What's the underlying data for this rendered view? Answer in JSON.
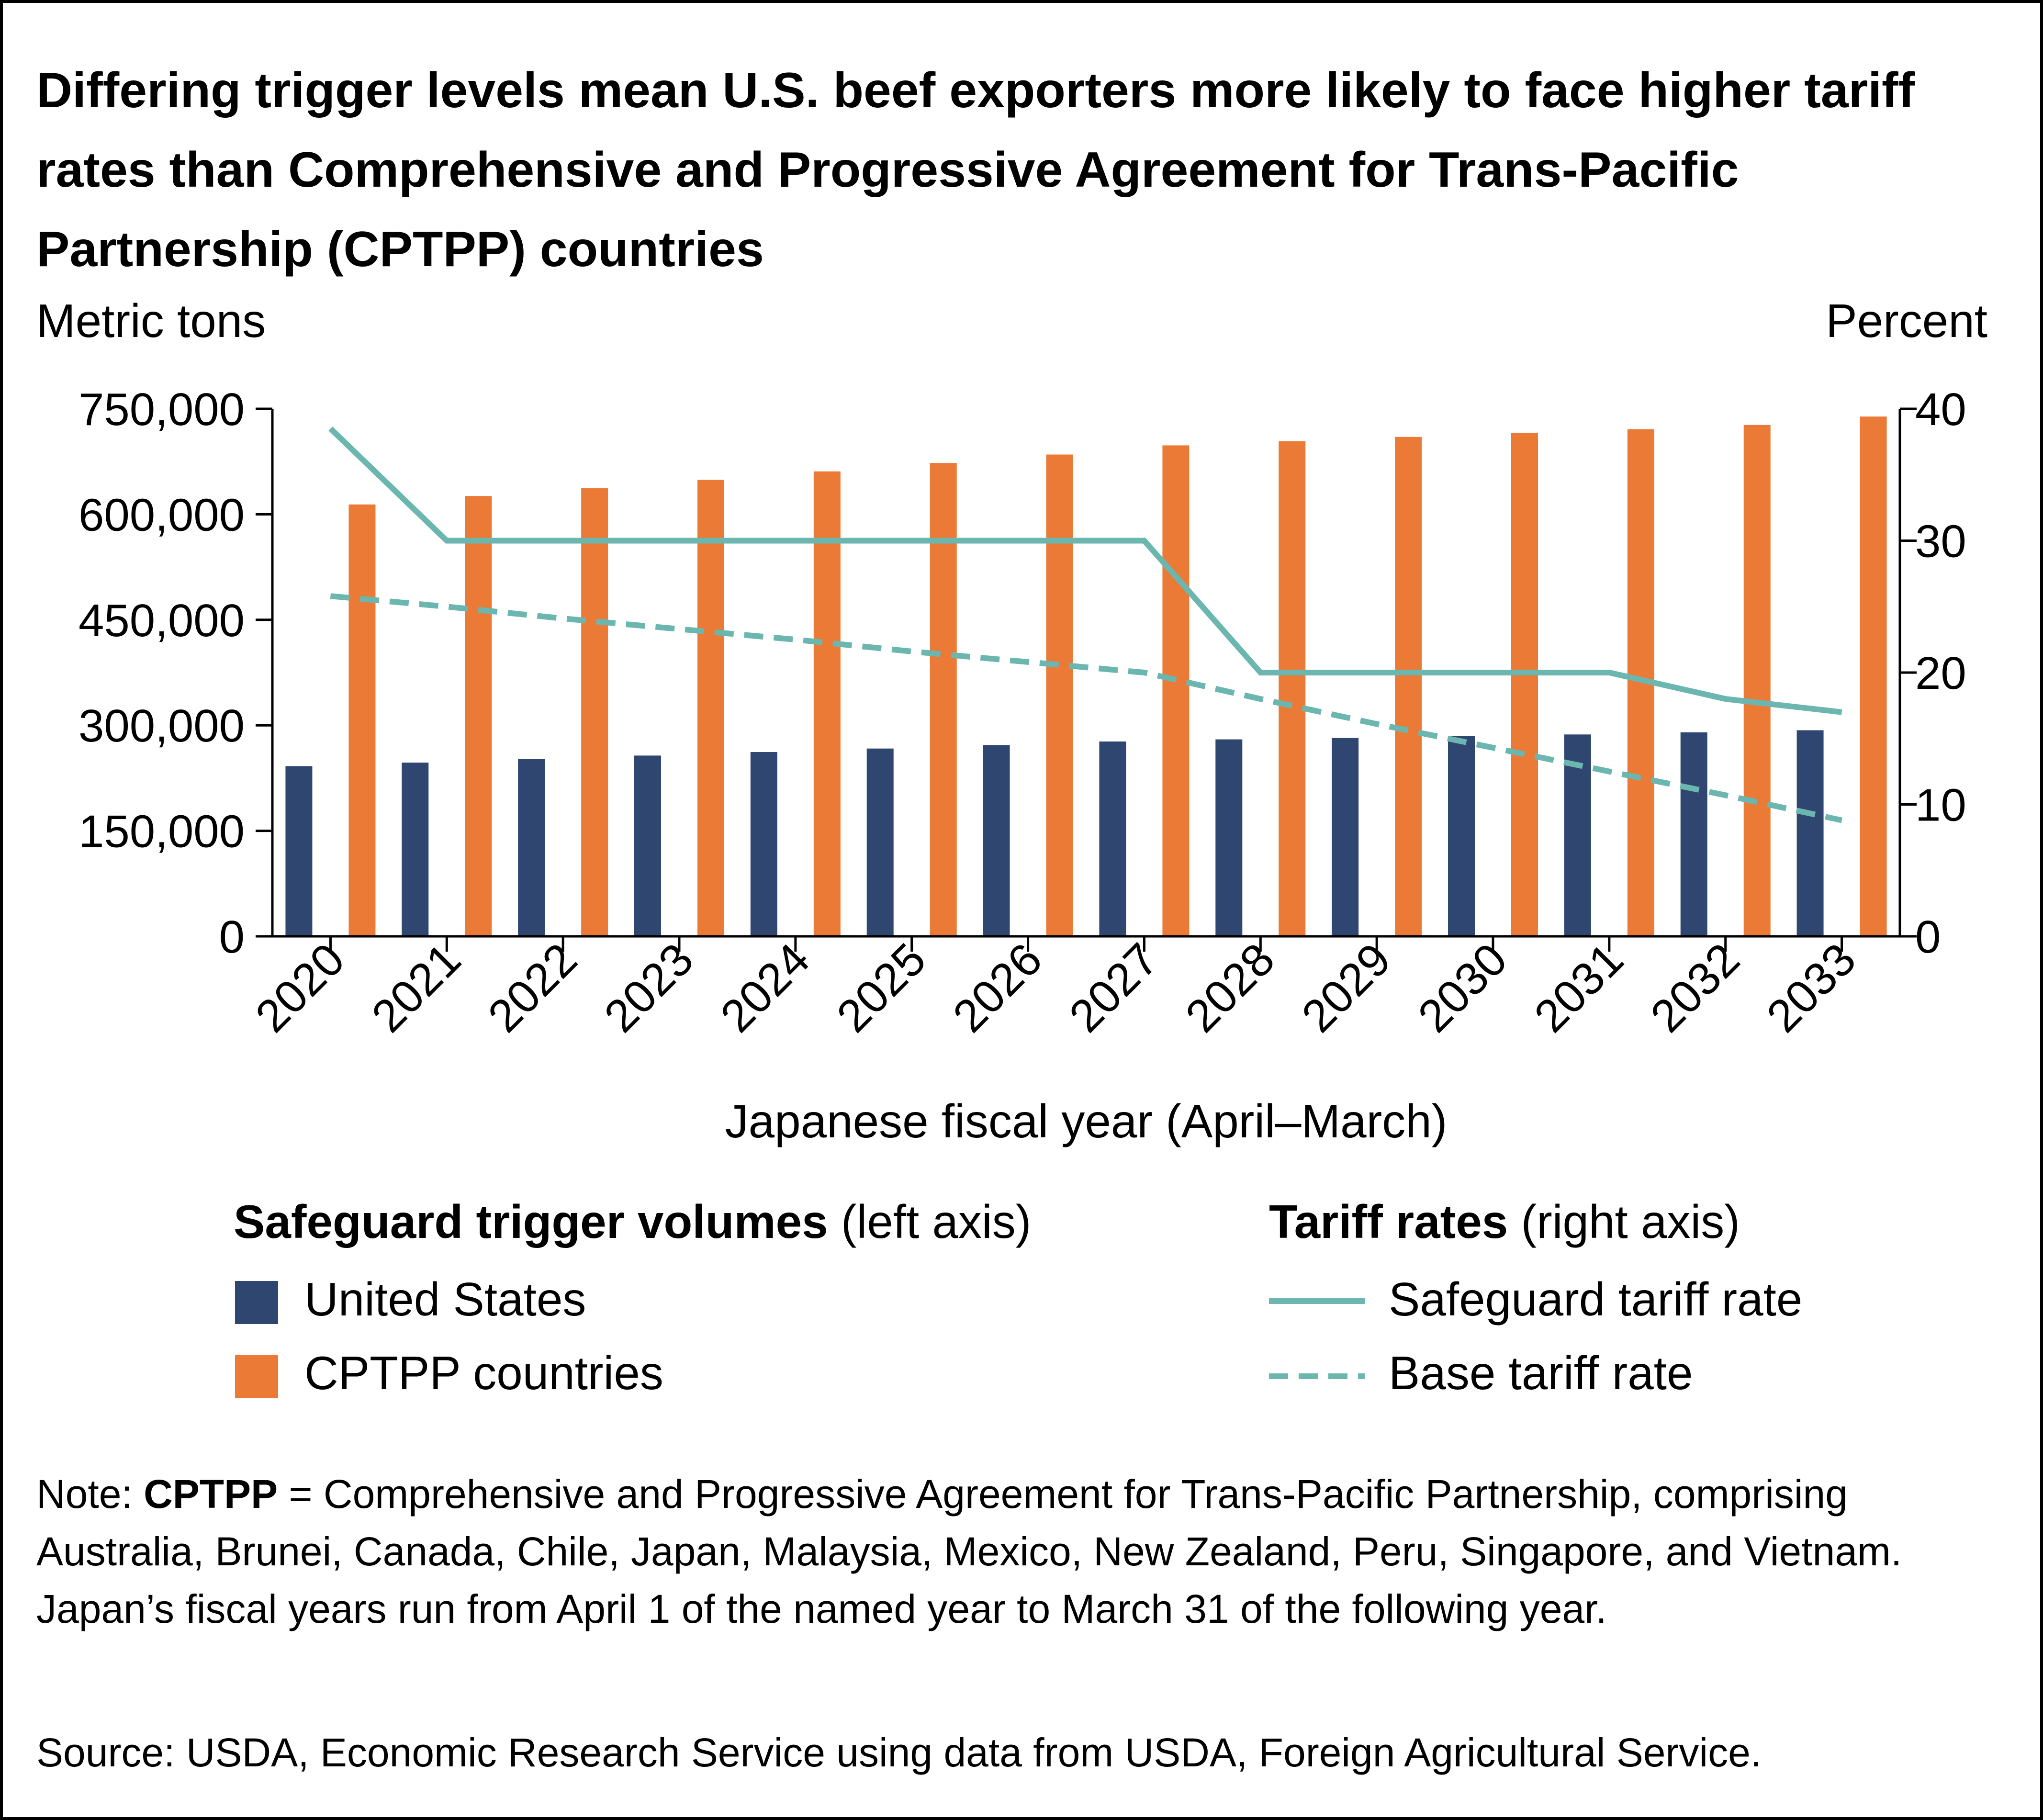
{
  "title": "Differing trigger levels mean U.S. beef exporters more likely to face higher tariff rates than Comprehensive and Progressive Agreement for Trans-Pacific Partnership (CPTPP) countries",
  "colors": {
    "united_states": "#2e4670",
    "cptpp": "#ea7a36",
    "tariff_line": "#6cb6b0"
  },
  "legend": {
    "left_heading_bold": "Safeguard trigger volumes",
    "left_heading_rest": " (left axis)",
    "right_heading_bold": "Tariff rates",
    "right_heading_rest": " (right axis)",
    "items": {
      "us": "United States",
      "cptpp": "CPTPP countries",
      "safeguard": "Safeguard tariff rate",
      "base": "Base tariff rate"
    }
  },
  "note": {
    "prefix": "Note: ",
    "bold": "CPTPP",
    "text": " = Comprehensive and Progressive Agreement for Trans-Pacific Partnership, comprising Australia, Brunei, Canada, Chile, Japan, Malaysia, Mexico, New Zealand, Peru, Singapore, and Vietnam. Japan’s fiscal years run from April 1 of the named year to March 31 of the following year."
  },
  "source": "Source: USDA, Economic Research Service using data from USDA, Foreign Agricultural Service.",
  "chart_data": {
    "type": "bar",
    "xlabel": "Japanese fiscal year (April–March)",
    "ylabel": "Metric tons",
    "ylabel_right": "Percent",
    "categories": [
      "2020",
      "2021",
      "2022",
      "2023",
      "2024",
      "2025",
      "2026",
      "2027",
      "2028",
      "2029",
      "2030",
      "2031",
      "2032",
      "2033"
    ],
    "ylim": [
      0,
      750000
    ],
    "yticks": [
      "0",
      "150,000",
      "300,000",
      "450,000",
      "600,000",
      "750,000"
    ],
    "ylim_right": [
      0,
      40
    ],
    "yticks_right": [
      "0",
      "10",
      "20",
      "30",
      "40"
    ],
    "grid": false,
    "legend_position": "bottom",
    "series": [
      {
        "name": "United States",
        "type": "bar",
        "axis": "left",
        "values": [
          242000,
          247000,
          252000,
          257000,
          262000,
          267000,
          272000,
          277000,
          280000,
          282000,
          285000,
          287000,
          290000,
          293000
        ]
      },
      {
        "name": "CPTPP countries",
        "type": "bar",
        "axis": "left",
        "values": [
          614000,
          626000,
          637000,
          649000,
          661000,
          673000,
          685000,
          698000,
          704000,
          710000,
          716000,
          721000,
          727000,
          739000
        ]
      },
      {
        "name": "Safeguard tariff rate",
        "type": "line",
        "style": "solid",
        "axis": "right",
        "values": [
          38.5,
          30,
          30,
          30,
          30,
          30,
          30,
          30,
          20,
          20,
          20,
          20,
          18,
          17
        ]
      },
      {
        "name": "Base tariff rate",
        "type": "line",
        "style": "dashed",
        "axis": "right",
        "values": [
          25.8,
          25,
          24.1,
          23.3,
          22.5,
          21.6,
          20.8,
          20,
          18,
          16.1,
          14.3,
          12.5,
          10.7,
          8.8
        ]
      }
    ]
  }
}
